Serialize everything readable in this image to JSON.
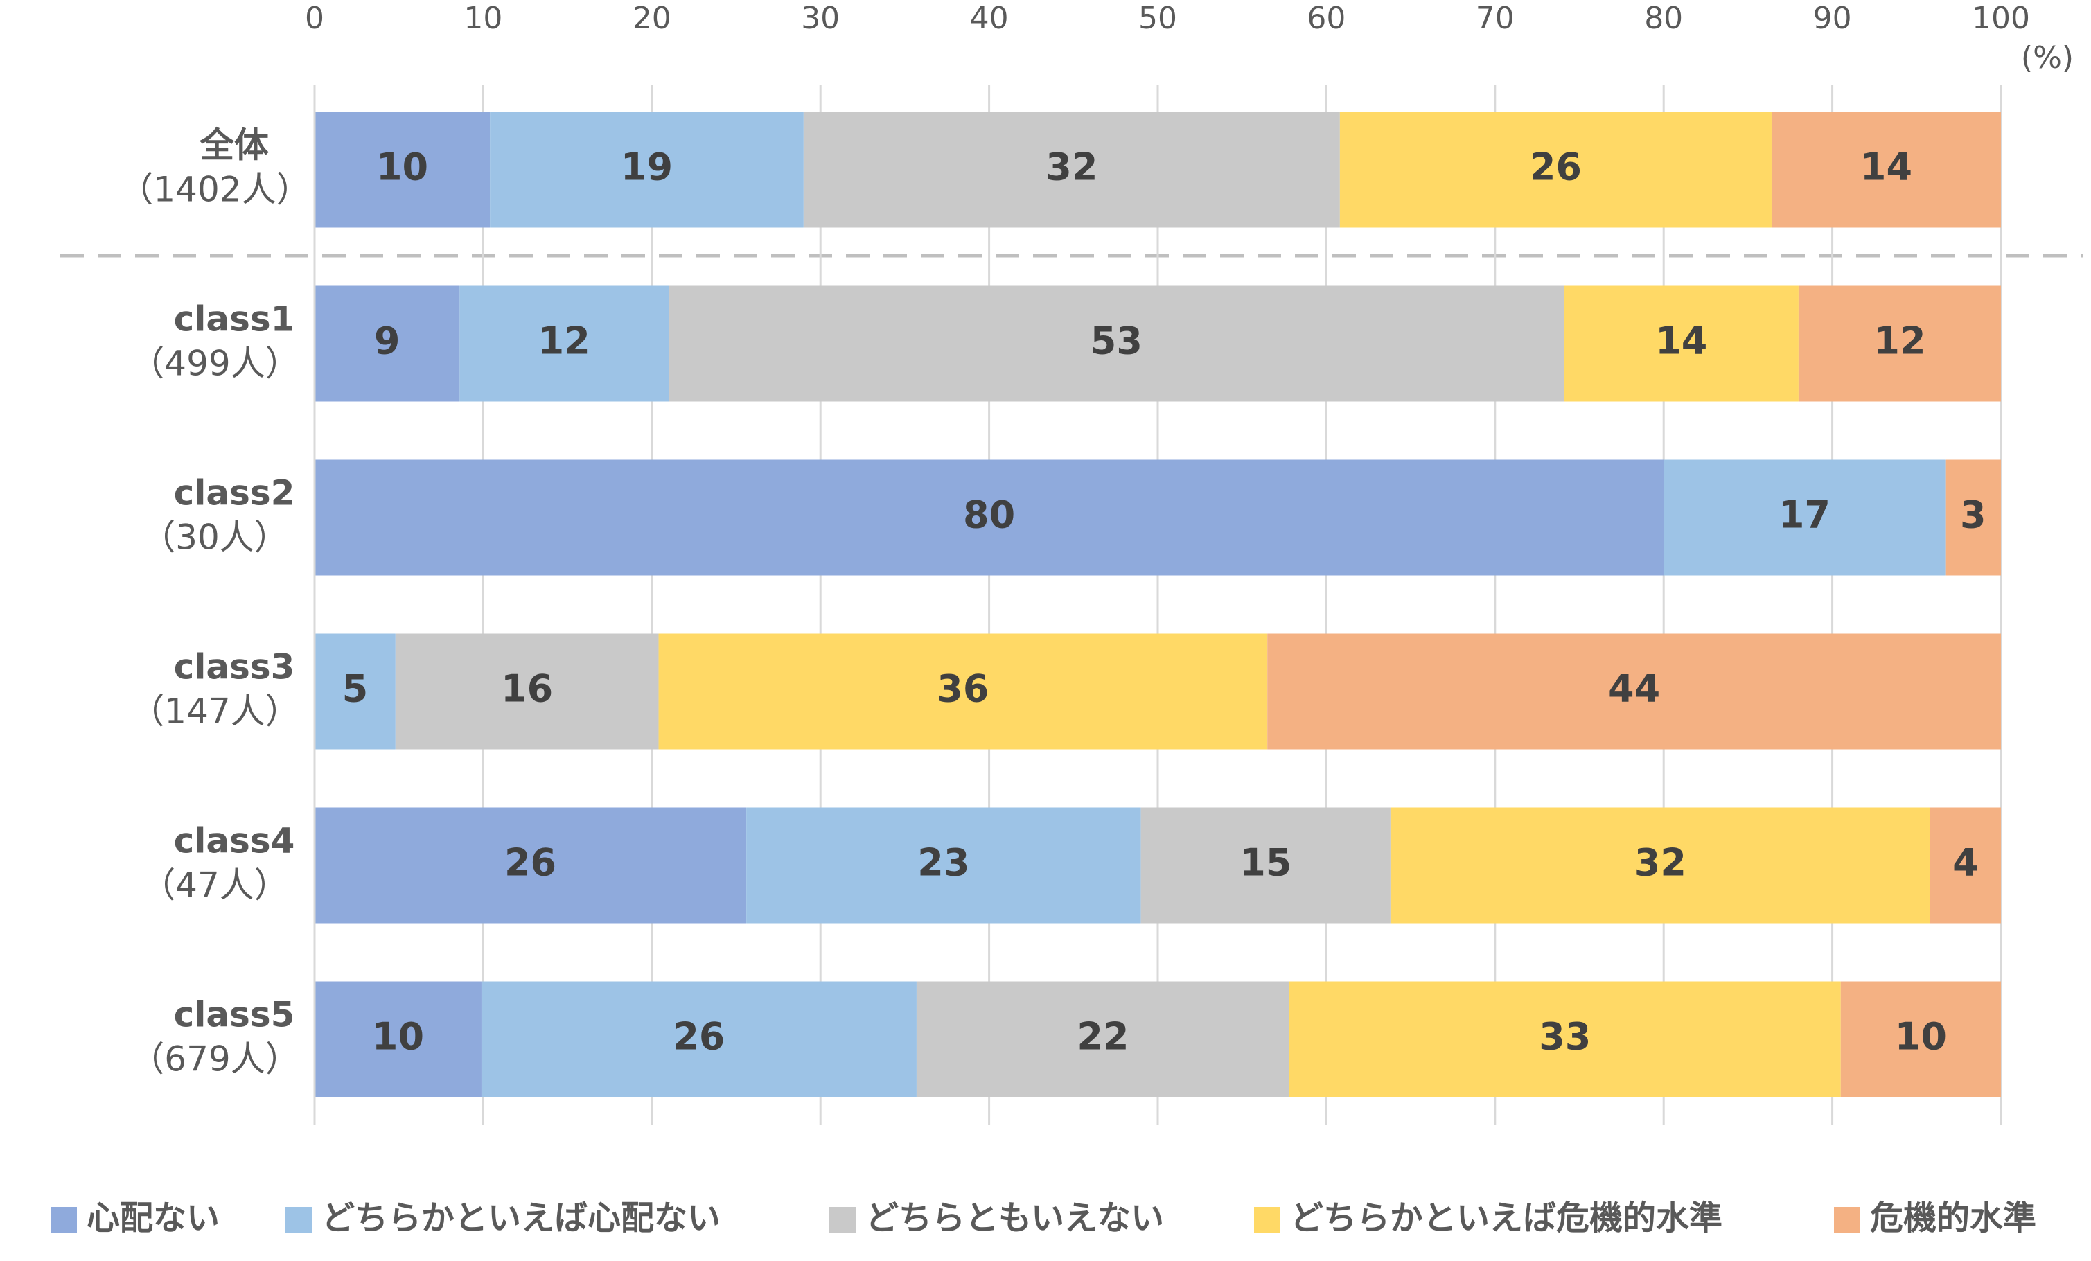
{
  "chart_data": {
    "type": "stacked_barh",
    "x_label": "(%)",
    "categories": [
      "全体",
      "class1",
      "class2",
      "class3",
      "class4",
      "class5"
    ],
    "category_counts": [
      "（1402人）",
      "（499人）",
      "（30人）",
      "（147人）",
      "（47人）",
      "（679人）"
    ],
    "series": [
      {
        "name": "心配ない",
        "color": "#8faadc",
        "values": [
          10.4,
          8.6,
          80.0,
          null,
          25.6,
          9.9
        ],
        "value_labels": [
          "10",
          "9",
          "80",
          null,
          "26",
          "10"
        ]
      },
      {
        "name": "どちらかといえば心配ない",
        "color": "#9dc3e6",
        "values": [
          18.6,
          12.4,
          16.7,
          4.8,
          23.4,
          25.8
        ],
        "value_labels": [
          "19",
          "12",
          "17",
          "5",
          "23",
          "26"
        ]
      },
      {
        "name": "どちらともいえない",
        "color": "#c9c9c9",
        "values": [
          31.8,
          53.1,
          null,
          15.6,
          14.8,
          22.1
        ],
        "value_labels": [
          "32",
          "53",
          null,
          "16",
          "15",
          "22"
        ]
      },
      {
        "name": "どちらかといえば危機的水準",
        "color": "#ffd966",
        "values": [
          25.6,
          13.9,
          null,
          36.1,
          32.0,
          32.7
        ],
        "value_labels": [
          "26",
          "14",
          null,
          "36",
          "32",
          "33"
        ]
      },
      {
        "name": "危機的水準",
        "color": "#f4b183",
        "values": [
          13.6,
          12.0,
          3.3,
          43.5,
          4.2,
          9.5
        ],
        "value_labels": [
          "14",
          "12",
          "3",
          "44",
          "4",
          "10"
        ]
      }
    ],
    "xlim": [
      0,
      100
    ],
    "xticks": [
      0,
      10,
      20,
      30,
      40,
      50,
      60,
      70,
      80,
      90,
      100
    ],
    "grid": true,
    "legend": "bottom"
  }
}
